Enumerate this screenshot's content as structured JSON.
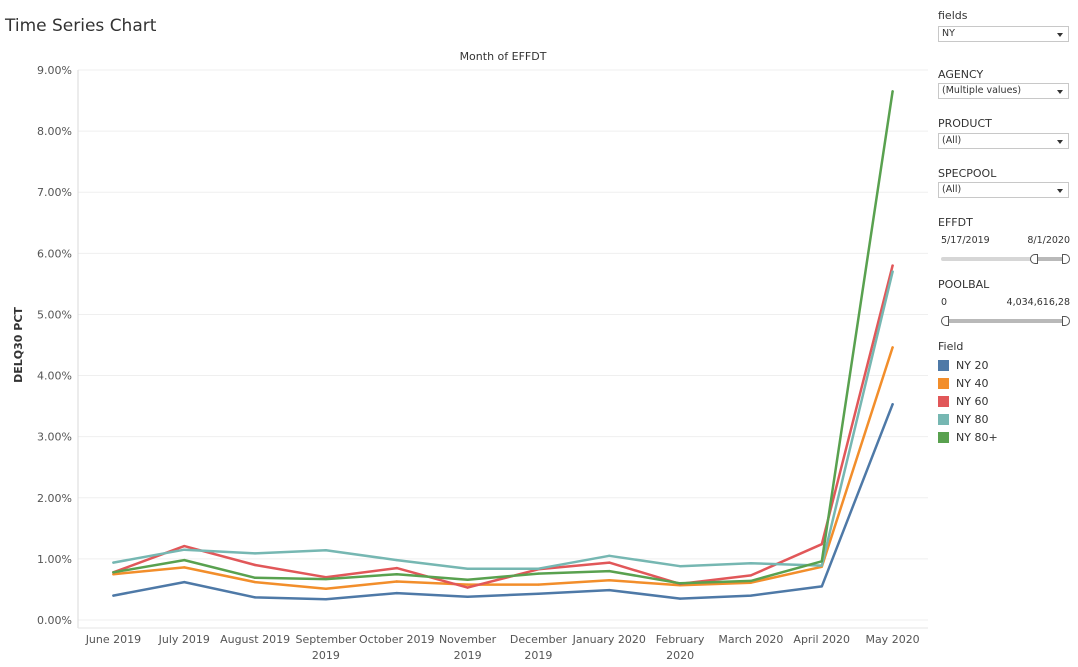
{
  "page": {
    "title": "Time Series Chart"
  },
  "chart_data": {
    "type": "line",
    "title": "Month of EFFDT",
    "xlabel": "",
    "ylabel": "DELQ30 PCT",
    "categories": [
      "June 2019",
      "July 2019",
      "August 2019",
      "September 2019",
      "October 2019",
      "November 2019",
      "December 2019",
      "January 2020",
      "February 2020",
      "March 2020",
      "April 2020",
      "May 2020"
    ],
    "y_ticks": [
      "0.00%",
      "1.00%",
      "2.00%",
      "3.00%",
      "4.00%",
      "5.00%",
      "6.00%",
      "7.00%",
      "8.00%",
      "9.00%"
    ],
    "ylim": [
      0,
      9
    ],
    "grid": true,
    "legend_position": "right",
    "series": [
      {
        "name": "NY 20",
        "color": "#4e79a7",
        "values": [
          0.4,
          0.62,
          0.37,
          0.34,
          0.44,
          0.38,
          0.43,
          0.49,
          0.35,
          0.4,
          0.55,
          3.53
        ]
      },
      {
        "name": "NY 40",
        "color": "#f28e2b",
        "values": [
          0.75,
          0.86,
          0.62,
          0.51,
          0.63,
          0.58,
          0.58,
          0.65,
          0.57,
          0.61,
          0.87,
          4.46
        ]
      },
      {
        "name": "NY 60",
        "color": "#e15759",
        "values": [
          0.78,
          1.21,
          0.9,
          0.7,
          0.85,
          0.53,
          0.83,
          0.94,
          0.59,
          0.73,
          1.24,
          5.8
        ]
      },
      {
        "name": "NY 80",
        "color": "#76b7b2",
        "values": [
          0.94,
          1.15,
          1.09,
          1.14,
          0.98,
          0.84,
          0.84,
          1.05,
          0.88,
          0.93,
          0.89,
          5.7
        ]
      },
      {
        "name": "NY 80+",
        "color": "#59a14f",
        "values": [
          0.78,
          0.98,
          0.69,
          0.67,
          0.75,
          0.66,
          0.76,
          0.8,
          0.6,
          0.64,
          0.96,
          8.65
        ]
      }
    ]
  },
  "filters": {
    "fields": {
      "label": "fields",
      "value": "NY"
    },
    "agency": {
      "label": "AGENCY",
      "value": "(Multiple values)"
    },
    "product": {
      "label": "PRODUCT",
      "value": "(All)"
    },
    "specpool": {
      "label": "SPECPOOL",
      "value": "(All)"
    },
    "effdt": {
      "label": "EFFDT",
      "min": "5/17/2019",
      "max": "8/1/2020"
    },
    "poolbal": {
      "label": "POOLBAL",
      "min": "0",
      "max": "4,034,616,28"
    }
  },
  "legend": {
    "title": "Field"
  }
}
